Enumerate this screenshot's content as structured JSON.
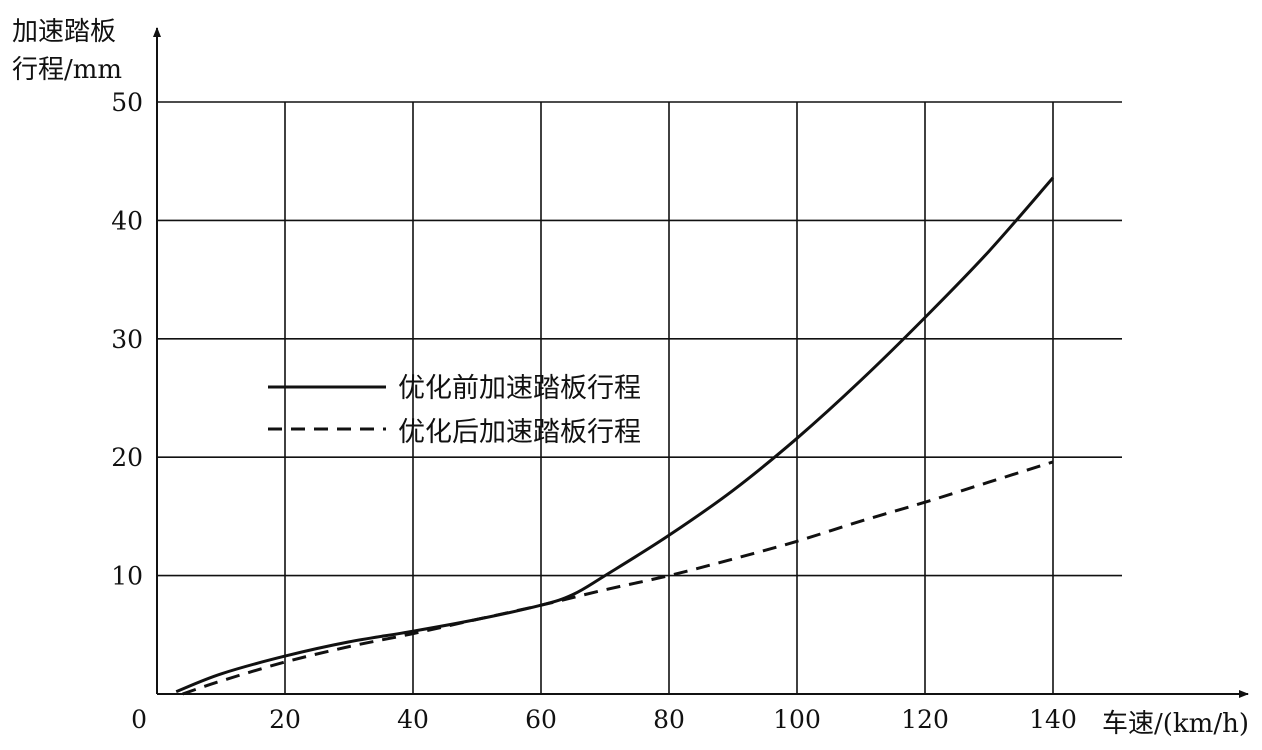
{
  "chart_data": {
    "type": "line",
    "xlabel": "车速/(km/h)",
    "ylabel_lines": [
      "加速踏板",
      "行程/mm"
    ],
    "xlim": [
      0,
      140
    ],
    "ylim": [
      0,
      50
    ],
    "x_tick_labels": [
      "0",
      "20",
      "40",
      "60",
      "80",
      "100",
      "120",
      "140"
    ],
    "y_tick_labels": [
      "10",
      "20",
      "30",
      "40",
      "50"
    ],
    "grid": true,
    "legend_position": "center-left",
    "series": [
      {
        "name": "优化前加速踏板行程",
        "style": "solid",
        "color": "#111111",
        "x": [
          3,
          10,
          20,
          30,
          40,
          50,
          60,
          65,
          70,
          80,
          90,
          100,
          110,
          120,
          130,
          140
        ],
        "y": [
          0.2,
          1.7,
          3.2,
          4.4,
          5.3,
          6.3,
          7.5,
          8.4,
          10,
          13.4,
          17.2,
          21.6,
          26.5,
          31.8,
          37.4,
          43.6
        ]
      },
      {
        "name": "优化后加速踏板行程",
        "style": "dashed",
        "color": "#111111",
        "x": [
          4,
          10,
          20,
          30,
          40,
          50,
          60,
          70,
          80,
          90,
          100,
          110,
          120,
          130,
          140
        ],
        "y": [
          0,
          1.1,
          2.7,
          4.0,
          5.1,
          6.3,
          7.5,
          8.8,
          10.0,
          11.4,
          12.9,
          14.6,
          16.2,
          17.9,
          19.6
        ]
      }
    ]
  }
}
